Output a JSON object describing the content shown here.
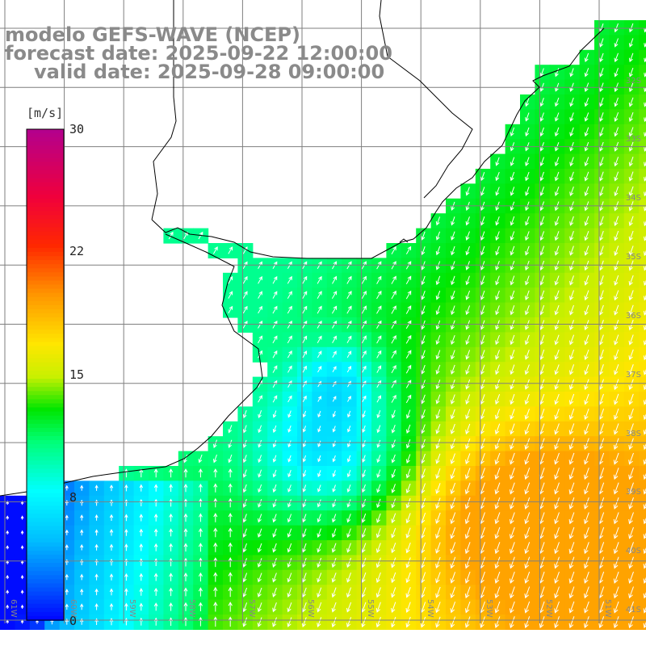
{
  "title": {
    "line1": "modelo GEFS-WAVE (NCEP)",
    "line2": "forecast date: 2025-09-22 12:00:00",
    "line3": "valid date: 2025-09-28 09:00:00"
  },
  "colorbar": {
    "unit": "[m/s]",
    "ticks": [
      "30",
      "22",
      "15",
      "8",
      "0"
    ],
    "tick_values": [
      30,
      22,
      15,
      8,
      0
    ],
    "range": [
      0,
      30
    ]
  },
  "lat_labels": [
    "32S",
    "33S",
    "34S",
    "35S",
    "36S",
    "37S",
    "38S",
    "39S",
    "40S",
    "41S"
  ],
  "lon_labels": [
    "61W",
    "60W",
    "59W",
    "58W",
    "57W",
    "56W",
    "55W",
    "54W",
    "53W",
    "52W",
    "51W"
  ],
  "colors": {
    "land": "#ffffff",
    "coast": "#000000",
    "grid": "#7f7f7f",
    "arrows": "#ffffff"
  }
}
